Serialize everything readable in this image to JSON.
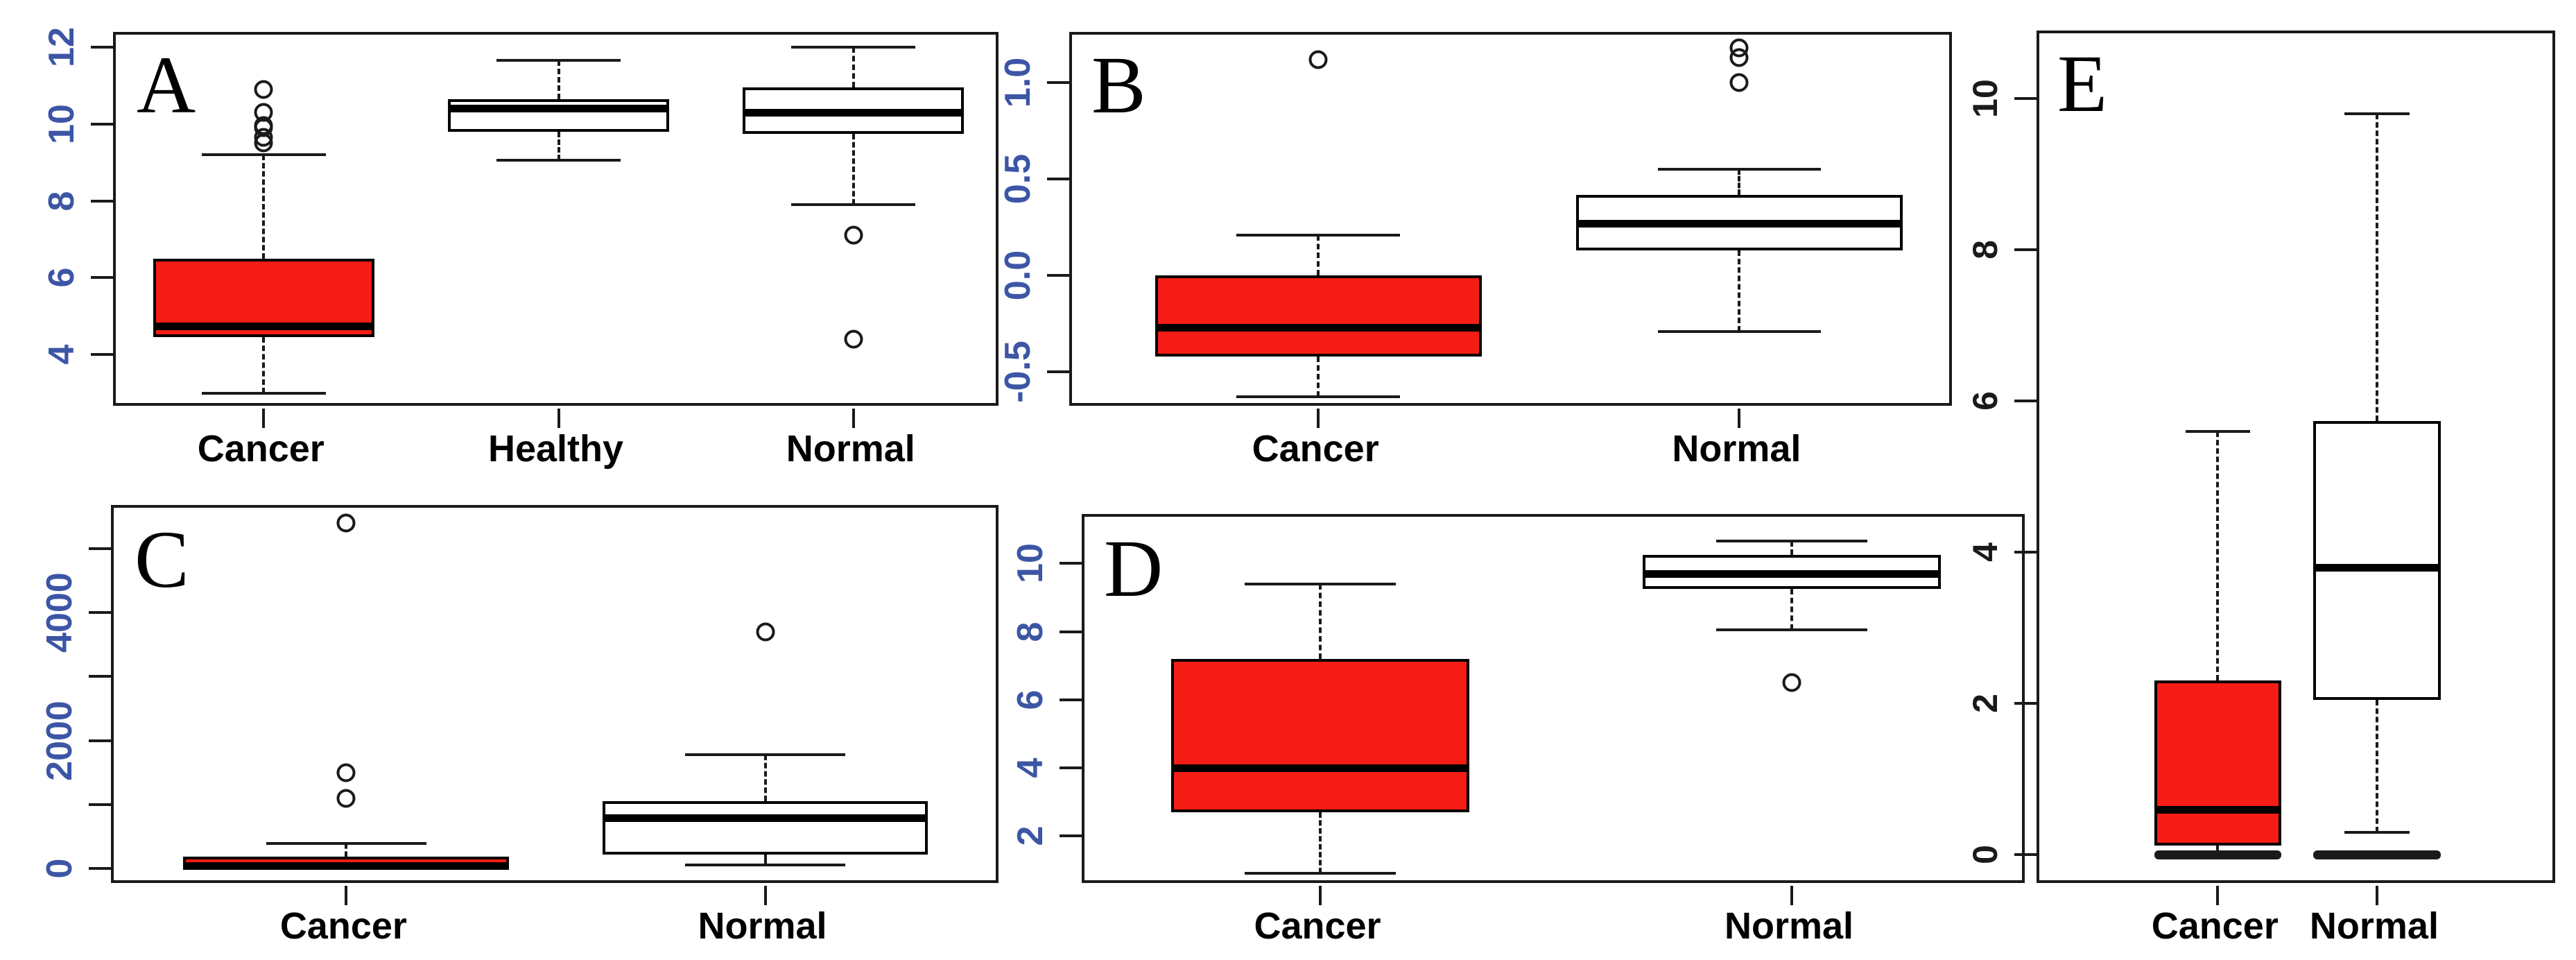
{
  "figure": {
    "description": "Five-panel R boxplot figure comparing gene/marker expression between groups",
    "background": "#ffffff",
    "frame_color": "#1a1a1a",
    "box_fill_cancer": "#f51d15",
    "box_fill_other": "#ffffff",
    "axis_number_color": "#3c55a5",
    "axis_number_color_e": "#1a1a1a",
    "category_label_color": "#000000"
  },
  "chart_data": [
    {
      "type": "box",
      "panel_letter": "A",
      "categories": [
        "Cancer",
        "Healthy",
        "Normal"
      ],
      "ylim": [
        2.6,
        12.32
      ],
      "yticks": [
        {
          "v": 4,
          "label": "4"
        },
        {
          "v": 6,
          "label": "6"
        },
        {
          "v": 8,
          "label": "8"
        },
        {
          "v": 10,
          "label": "10"
        },
        {
          "v": 12,
          "label": "12"
        }
      ],
      "series": [
        {
          "name": "Cancer",
          "fill": "#f51d15",
          "lo": 3.0,
          "q1": 4.45,
          "med": 4.75,
          "q3": 6.5,
          "hi": 9.2,
          "outliers": [
            9.5,
            9.65,
            9.9,
            9.95,
            10.3,
            10.9
          ]
        },
        {
          "name": "Healthy",
          "fill": "#ffffff",
          "lo": 9.05,
          "q1": 9.8,
          "med": 10.4,
          "q3": 10.65,
          "hi": 11.65,
          "outliers": []
        },
        {
          "name": "Normal",
          "fill": "#ffffff",
          "lo": 7.9,
          "q1": 9.75,
          "med": 10.3,
          "q3": 10.95,
          "hi": 12.0,
          "outliers": [
            7.1,
            4.4
          ]
        }
      ]
    },
    {
      "type": "box",
      "panel_letter": "B",
      "categories": [
        "Cancer",
        "Normal"
      ],
      "ylim": [
        -0.69,
        1.25
      ],
      "yticks": [
        {
          "v": -0.5,
          "label": "-0.5"
        },
        {
          "v": 0.0,
          "label": "0.0"
        },
        {
          "v": 0.5,
          "label": "0.5"
        },
        {
          "v": 1.0,
          "label": "1.0"
        }
      ],
      "series": [
        {
          "name": "Cancer",
          "fill": "#f51d15",
          "lo": -0.63,
          "q1": -0.42,
          "med": -0.27,
          "q3": 0.0,
          "hi": 0.21,
          "outliers": [
            1.12
          ]
        },
        {
          "name": "Normal",
          "fill": "#ffffff",
          "lo": -0.29,
          "q1": 0.13,
          "med": 0.27,
          "q3": 0.42,
          "hi": 0.55,
          "outliers": [
            1.0,
            1.13,
            1.18
          ]
        }
      ]
    },
    {
      "type": "box",
      "panel_letter": "C",
      "categories": [
        "Cancer",
        "Normal"
      ],
      "ylim": [
        -270,
        5640
      ],
      "yticks": [
        {
          "v": 0,
          "label": "0"
        },
        {
          "v": 1000,
          "label": ""
        },
        {
          "v": 2000,
          "label": "2000"
        },
        {
          "v": 3000,
          "label": ""
        },
        {
          "v": 4000,
          "label": "4000"
        },
        {
          "v": 5000,
          "label": ""
        }
      ],
      "series": [
        {
          "name": "Cancer",
          "fill": "#f51d15",
          "lo": 0,
          "q1": 10,
          "med": 45,
          "q3": 185,
          "hi": 390,
          "outliers": [
            1100,
            1500,
            5400
          ]
        },
        {
          "name": "Normal",
          "fill": "#ffffff",
          "lo": 50,
          "q1": 220,
          "med": 790,
          "q3": 1050,
          "hi": 1780,
          "outliers": [
            3700
          ]
        }
      ]
    },
    {
      "type": "box",
      "panel_letter": "D",
      "categories": [
        "Cancer",
        "Normal"
      ],
      "ylim": [
        0.54,
        11.37
      ],
      "yticks": [
        {
          "v": 2,
          "label": "2"
        },
        {
          "v": 4,
          "label": "4"
        },
        {
          "v": 6,
          "label": "6"
        },
        {
          "v": 8,
          "label": "8"
        },
        {
          "v": 10,
          "label": "10"
        }
      ],
      "series": [
        {
          "name": "Cancer",
          "fill": "#f51d15",
          "lo": 0.9,
          "q1": 2.7,
          "med": 4.0,
          "q3": 7.2,
          "hi": 9.4,
          "outliers": []
        },
        {
          "name": "Normal",
          "fill": "#ffffff",
          "lo": 8.05,
          "q1": 9.25,
          "med": 9.7,
          "q3": 10.25,
          "hi": 10.65,
          "outliers": [
            6.5
          ]
        }
      ]
    },
    {
      "type": "box",
      "panel_letter": "E",
      "categories": [
        "Cancer",
        "Normal"
      ],
      "ylim": [
        -0.41,
        10.86
      ],
      "yticks": [
        {
          "v": 0,
          "label": "0"
        },
        {
          "v": 2,
          "label": "2"
        },
        {
          "v": 4,
          "label": "4"
        },
        {
          "v": 6,
          "label": "6"
        },
        {
          "v": 8,
          "label": "8"
        },
        {
          "v": 10,
          "label": "10"
        }
      ],
      "series": [
        {
          "name": "Cancer",
          "fill": "#f51d15",
          "lo": 0.0,
          "q1": 0.12,
          "med": 0.6,
          "q3": 2.3,
          "hi": 5.6,
          "outliers": [],
          "thick_lo_cap": true
        },
        {
          "name": "Normal",
          "fill": "#ffffff",
          "lo": 0.3,
          "q1": 2.05,
          "med": 3.8,
          "q3": 5.73,
          "hi": 9.8,
          "outliers": [],
          "extra_bar": 0.0
        }
      ]
    }
  ]
}
